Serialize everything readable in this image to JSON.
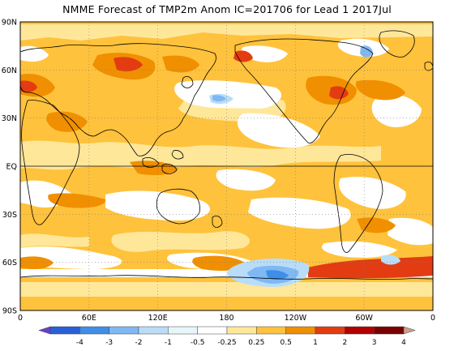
{
  "title": "NMME Forecast of TMP2m Anom IC=201706 for Lead 1 2017Jul",
  "lat_ticks": [
    {
      "label": "90N",
      "lat": 90
    },
    {
      "label": "60N",
      "lat": 60
    },
    {
      "label": "30N",
      "lat": 30
    },
    {
      "label": "EQ",
      "lat": 0
    },
    {
      "label": "30S",
      "lat": -30
    },
    {
      "label": "60S",
      "lat": -60
    },
    {
      "label": "90S",
      "lat": -90
    }
  ],
  "lon_ticks": [
    {
      "label": "0",
      "lon": 0
    },
    {
      "label": "60E",
      "lon": 60
    },
    {
      "label": "120E",
      "lon": 120
    },
    {
      "label": "180",
      "lon": 180
    },
    {
      "label": "120W",
      "lon": 240
    },
    {
      "label": "60W",
      "lon": 300
    },
    {
      "label": "0",
      "lon": 360
    }
  ],
  "colorbar": {
    "labels": [
      "-4",
      "-3",
      "-2",
      "-1",
      "-0.5",
      "-0.25",
      "0.25",
      "0.5",
      "1",
      "2",
      "3",
      "4"
    ],
    "colors": [
      "#6a3fc6",
      "#2a5fd8",
      "#3f8ee8",
      "#7fb8f2",
      "#b9ddf8",
      "#e6f6fb",
      "#ffffff",
      "#ffe79a",
      "#ffc23c",
      "#f08f00",
      "#e33b12",
      "#b20000",
      "#7a0000",
      "#c9a08c"
    ]
  },
  "anomaly_palette": {
    "neutral": "#ffffff",
    "warm_weak": "#ffe79a",
    "warm_mod": "#ffc23c",
    "warm_strong": "#f08f00",
    "warm_hot": "#e33b12",
    "cool_weak": "#b9ddf8",
    "cool_mod": "#7fb8f2",
    "cool_strong": "#3f8ee8"
  }
}
